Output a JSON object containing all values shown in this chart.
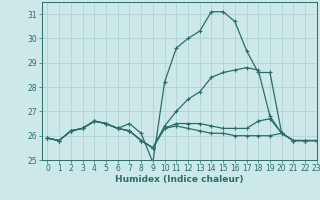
{
  "title": "",
  "xlabel": "Humidex (Indice chaleur)",
  "ylabel": "",
  "bg_color": "#cce8e8",
  "line_color": "#2a6e6a",
  "grid_color": "#aacfcf",
  "xlim": [
    -0.5,
    23
  ],
  "ylim": [
    25,
    31.5
  ],
  "x": [
    0,
    1,
    2,
    3,
    4,
    5,
    6,
    7,
    8,
    9,
    10,
    11,
    12,
    13,
    14,
    15,
    16,
    17,
    18,
    19,
    20,
    21,
    22,
    23
  ],
  "series": [
    [
      25.9,
      25.8,
      26.2,
      26.3,
      26.6,
      26.5,
      26.3,
      26.2,
      25.8,
      25.5,
      26.3,
      26.4,
      26.3,
      26.2,
      26.1,
      26.1,
      26.0,
      26.0,
      26.0,
      26.0,
      26.1,
      25.8,
      25.8,
      25.8
    ],
    [
      25.9,
      25.8,
      26.2,
      26.3,
      26.6,
      26.5,
      26.3,
      26.5,
      26.1,
      24.9,
      28.2,
      29.6,
      30.0,
      30.3,
      31.1,
      31.1,
      30.7,
      29.5,
      28.6,
      28.6,
      26.1,
      25.8,
      25.8,
      25.8
    ],
    [
      25.9,
      25.8,
      26.2,
      26.3,
      26.6,
      26.5,
      26.3,
      26.2,
      25.8,
      25.5,
      26.4,
      27.0,
      27.5,
      27.8,
      28.4,
      28.6,
      28.7,
      28.8,
      28.7,
      26.8,
      26.1,
      25.8,
      25.8,
      25.8
    ],
    [
      25.9,
      25.8,
      26.2,
      26.3,
      26.6,
      26.5,
      26.3,
      26.2,
      25.8,
      25.5,
      26.3,
      26.5,
      26.5,
      26.5,
      26.4,
      26.3,
      26.3,
      26.3,
      26.6,
      26.7,
      26.1,
      25.8,
      25.8,
      25.8
    ]
  ],
  "xticks": [
    0,
    1,
    2,
    3,
    4,
    5,
    6,
    7,
    8,
    9,
    10,
    11,
    12,
    13,
    14,
    15,
    16,
    17,
    18,
    19,
    20,
    21,
    22,
    23
  ],
  "yticks": [
    25,
    26,
    27,
    28,
    29,
    30,
    31
  ],
  "tick_fontsize": 5.5,
  "xlabel_fontsize": 6.5,
  "marker_size": 3.5,
  "linewidth": 0.9
}
